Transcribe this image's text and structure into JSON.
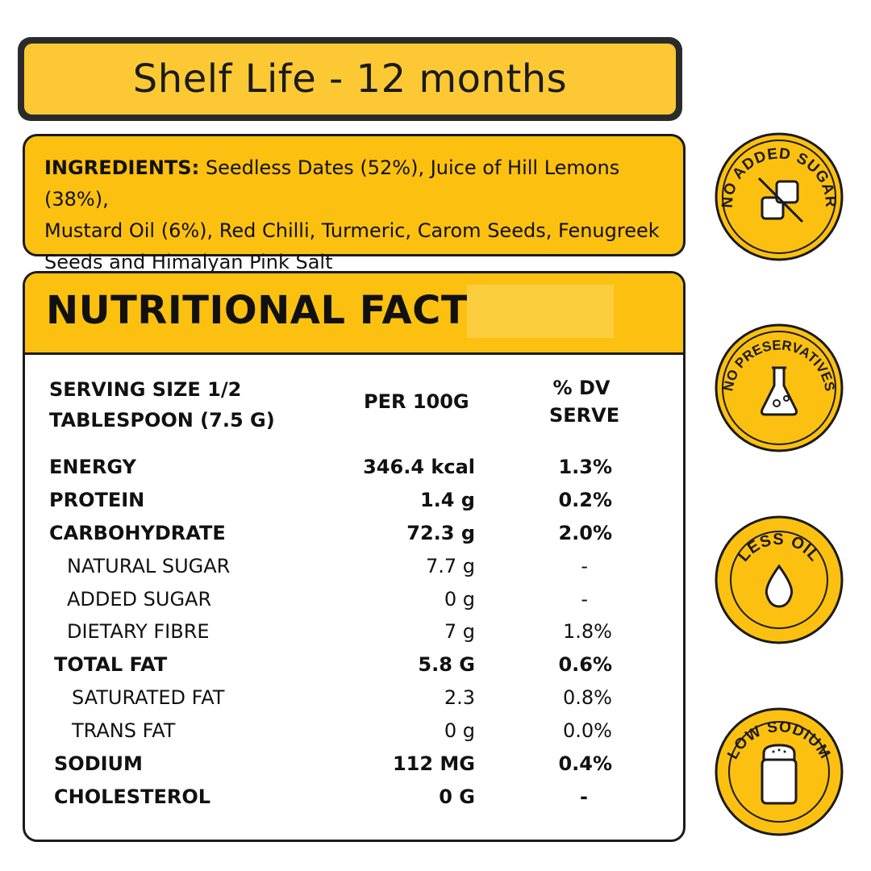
{
  "shelf_life": "Shelf Life - 12 months",
  "ingredients": {
    "label": "INGREDIENTS:",
    "lines": [
      "Seedless Dates (52%), Juice of Hill Lemons (38%),",
      "Mustard Oil (6%), Red Chilli, Turmeric, Carom Seeds, Fenugreek",
      "Seeds and Himalyan Pink Salt"
    ]
  },
  "facts": {
    "title": "NUTRITIONAL FACTS",
    "serving_line1": "SERVING SIZE 1/2",
    "serving_line2": "TABLESPOON (7.5 G)",
    "col_per": "PER 100G",
    "col_dv_line1": "% DV",
    "col_dv_line2": "SERVE",
    "rows": [
      {
        "label": "ENERGY",
        "value": "346.4 kcal",
        "dv": "1.3%"
      },
      {
        "label": "PROTEIN",
        "value": "1.4 g",
        "dv": "0.2%"
      },
      {
        "label": "CARBOHYDRATE",
        "value": "72.3 g",
        "dv": "2.0%"
      },
      {
        "label": "NATURAL SUGAR",
        "value": "7.7 g",
        "dv": "-"
      },
      {
        "label": "ADDED SUGAR",
        "value": "0 g",
        "dv": "-"
      },
      {
        "label": "DIETARY FIBRE",
        "value": "7 g",
        "dv": "1.8%"
      },
      {
        "label": "TOTAL FAT",
        "value": "5.8 G",
        "dv": "0.6%"
      },
      {
        "label": "SATURATED FAT",
        "value": "2.3",
        "dv": "0.8%"
      },
      {
        "label": "TRANS FAT",
        "value": "0 g",
        "dv": "0.0%"
      },
      {
        "label": "SODIUM",
        "value": "112 MG",
        "dv": "0.4%"
      },
      {
        "label": "CHOLESTEROL",
        "value": "0 G",
        "dv": "-"
      }
    ]
  },
  "badges": [
    {
      "text": "NO ADDED SUGAR",
      "icon": "sugar-cubes-crossed-icon"
    },
    {
      "text": "NO PRESERVATIVES",
      "icon": "flask-icon"
    },
    {
      "text": "LESS OIL",
      "icon": "drop-icon"
    },
    {
      "text": "LOW SODIUM",
      "icon": "salt-shaker-icon"
    }
  ],
  "colors": {
    "yellow": "#fcc010",
    "outline": "#1b1b1b"
  }
}
